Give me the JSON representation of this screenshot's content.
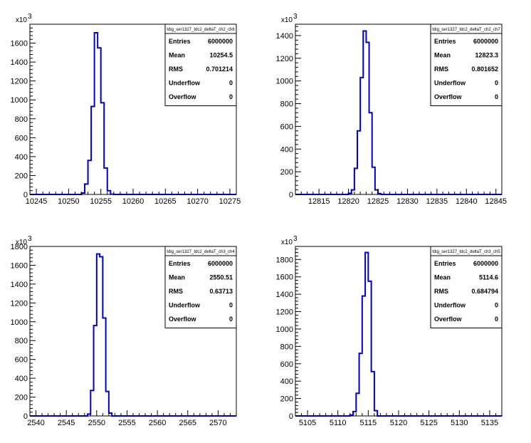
{
  "colors": {
    "histogram": "#0000cc",
    "frame": "#000000",
    "background": "#ffffff"
  },
  "chart_data": [
    {
      "type": "histogram",
      "title": "tdig_ser1327_tdc2_deltaT_ch2_ch6",
      "xlim": [
        10244,
        10276
      ],
      "ylim": [
        0,
        1800
      ],
      "yscale_label": "10^3",
      "yexp_base": "x10",
      "yexp_pow": "3",
      "xticks": [
        10245,
        10250,
        10255,
        10260,
        10265,
        10270,
        10275
      ],
      "yticks": [
        0,
        200,
        400,
        600,
        800,
        1000,
        1200,
        1400,
        1600
      ],
      "bin_edges": [
        10252.0,
        10252.5,
        10253.0,
        10253.5,
        10254.0,
        10254.5,
        10255.0,
        10255.5,
        10256.0,
        10256.5,
        10257.0
      ],
      "counts": [
        15,
        110,
        360,
        930,
        1710,
        1550,
        970,
        280,
        40,
        3
      ],
      "stats": {
        "name": "tdig_ser1327_tdc2_deltaT_ch2_ch6",
        "rows": [
          {
            "label": "Entries",
            "value": "6000000"
          },
          {
            "label": "Mean",
            "value": "10254.5"
          },
          {
            "label": "RMS",
            "value": "0.701214"
          },
          {
            "label": "Underflow",
            "value": "0"
          },
          {
            "label": "Overflow",
            "value": "0"
          }
        ]
      }
    },
    {
      "type": "histogram",
      "title": "tdig_ser1327_tdc2_deltaT_ch2_ch7",
      "xlim": [
        12811,
        12846
      ],
      "ylim": [
        0,
        1500
      ],
      "yscale_label": "10^3",
      "yexp_base": "x10",
      "yexp_pow": "3",
      "xticks": [
        12815,
        12820,
        12825,
        12830,
        12835,
        12840,
        12845
      ],
      "yticks": [
        0,
        200,
        400,
        600,
        800,
        1000,
        1200,
        1400
      ],
      "bin_edges": [
        12820.0,
        12820.5,
        12821.0,
        12821.5,
        12822.0,
        12822.5,
        12823.0,
        12823.5,
        12824.0,
        12824.5,
        12825.0,
        12825.5
      ],
      "counts": [
        10,
        40,
        230,
        560,
        1030,
        1440,
        1340,
        720,
        240,
        40,
        8
      ],
      "stats": {
        "name": "tdig_ser1327_tdc2_deltaT_ch2_ch7",
        "rows": [
          {
            "label": "Entries",
            "value": "6000000"
          },
          {
            "label": "Mean",
            "value": "12823.3"
          },
          {
            "label": "RMS",
            "value": "0.801652"
          },
          {
            "label": "Underflow",
            "value": "0"
          },
          {
            "label": "Overflow",
            "value": "0"
          }
        ]
      }
    },
    {
      "type": "histogram",
      "title": "tdig_ser1327_tdc2_deltaT_ch3_ch4",
      "xlim": [
        2539,
        2573
      ],
      "ylim": [
        0,
        1800
      ],
      "yscale_label": "10^3",
      "yexp_base": "x10",
      "yexp_pow": "3",
      "xticks": [
        2540,
        2545,
        2550,
        2555,
        2560,
        2565,
        2570
      ],
      "yticks": [
        0,
        200,
        400,
        600,
        800,
        1000,
        1200,
        1400,
        1600,
        1800
      ],
      "bin_edges": [
        2548.5,
        2549.0,
        2549.5,
        2550.0,
        2550.5,
        2551.0,
        2551.5,
        2552.0,
        2552.5
      ],
      "counts": [
        20,
        270,
        960,
        1720,
        1690,
        1040,
        260,
        30
      ],
      "stats": {
        "name": "tdig_ser1327_tdc2_deltaT_ch3_ch4",
        "rows": [
          {
            "label": "Entries",
            "value": "6000000"
          },
          {
            "label": "Mean",
            "value": "2550.51"
          },
          {
            "label": "RMS",
            "value": "0.63713"
          },
          {
            "label": "Underflow",
            "value": "0"
          },
          {
            "label": "Overflow",
            "value": "0"
          }
        ]
      }
    },
    {
      "type": "histogram",
      "title": "tdig_ser1327_tdc2_deltaT_ch3_ch5",
      "xlim": [
        5103,
        5137
      ],
      "ylim": [
        0,
        1950
      ],
      "yscale_label": "10^3",
      "yexp_base": "x10",
      "yexp_pow": "3",
      "xticks": [
        5105,
        5110,
        5115,
        5120,
        5125,
        5130,
        5135
      ],
      "yticks": [
        0,
        200,
        400,
        600,
        800,
        1000,
        1200,
        1400,
        1600,
        1800
      ],
      "bin_edges": [
        5112.0,
        5112.5,
        5113.0,
        5113.5,
        5114.0,
        5114.5,
        5115.0,
        5115.5,
        5116.0,
        5116.5
      ],
      "counts": [
        10,
        50,
        260,
        720,
        1380,
        1880,
        1550,
        510,
        60
      ],
      "stats": {
        "name": "tdig_ser1327_tdc2_deltaT_ch3_ch5",
        "rows": [
          {
            "label": "Entries",
            "value": "6000000"
          },
          {
            "label": "Mean",
            "value": "5114.6"
          },
          {
            "label": "RMS",
            "value": "0.684794"
          },
          {
            "label": "Underflow",
            "value": "0"
          },
          {
            "label": "Overflow",
            "value": "0"
          }
        ]
      }
    }
  ]
}
